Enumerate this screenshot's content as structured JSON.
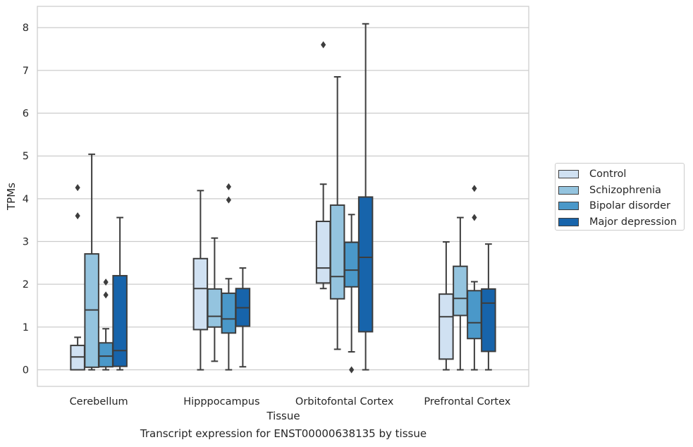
{
  "chart_data": {
    "type": "boxplot",
    "xlabel": "Tissue",
    "ylabel": "TPMs",
    "ylim": [
      -0.4,
      8.5
    ],
    "yticks": [
      0,
      1,
      2,
      3,
      4,
      5,
      6,
      7,
      8
    ],
    "grid": "horizontal",
    "legend_position": "right",
    "caption": "Transcript expression for ENST00000638135 by tissue",
    "categories": [
      "Cerebellum",
      "Hipppocampus",
      "Orbitofontal Cortex",
      "Prefrontal Cortex"
    ],
    "series": [
      {
        "name": "Control",
        "color": "#d0e1f2",
        "boxes": [
          {
            "whisker_low": 0.0,
            "q1": 0.0,
            "median": 0.3,
            "q3": 0.57,
            "whisker_high": 0.76,
            "outliers": [
              3.6,
              4.26
            ]
          },
          {
            "whisker_low": 0.0,
            "q1": 0.94,
            "median": 1.9,
            "q3": 2.6,
            "whisker_high": 4.19,
            "outliers": []
          },
          {
            "whisker_low": 1.9,
            "q1": 2.03,
            "median": 2.38,
            "q3": 3.47,
            "whisker_high": 4.34,
            "outliers": [
              7.6
            ]
          },
          {
            "whisker_low": 0.0,
            "q1": 0.25,
            "median": 1.24,
            "q3": 1.77,
            "whisker_high": 2.99,
            "outliers": []
          }
        ]
      },
      {
        "name": "Schizophrenia",
        "color": "#94c4df",
        "boxes": [
          {
            "whisker_low": 0.0,
            "q1": 0.06,
            "median": 1.4,
            "q3": 2.71,
            "whisker_high": 5.04,
            "outliers": []
          },
          {
            "whisker_low": 0.2,
            "q1": 1.0,
            "median": 1.25,
            "q3": 1.89,
            "whisker_high": 3.08,
            "outliers": []
          },
          {
            "whisker_low": 0.48,
            "q1": 1.66,
            "median": 2.18,
            "q3": 3.85,
            "whisker_high": 6.85,
            "outliers": []
          },
          {
            "whisker_low": 0.0,
            "q1": 1.27,
            "median": 1.67,
            "q3": 2.42,
            "whisker_high": 3.56,
            "outliers": []
          }
        ]
      },
      {
        "name": "Bipolar disorder",
        "color": "#4a98c9",
        "boxes": [
          {
            "whisker_low": 0.0,
            "q1": 0.07,
            "median": 0.32,
            "q3": 0.63,
            "whisker_high": 0.96,
            "outliers": [
              1.75,
              2.05
            ]
          },
          {
            "whisker_low": 0.0,
            "q1": 0.86,
            "median": 1.19,
            "q3": 1.79,
            "whisker_high": 2.13,
            "outliers": [
              3.97,
              4.28
            ]
          },
          {
            "whisker_low": 0.42,
            "q1": 1.94,
            "median": 2.33,
            "q3": 2.98,
            "whisker_high": 3.63,
            "outliers": [
              0.0
            ]
          },
          {
            "whisker_low": 0.0,
            "q1": 0.73,
            "median": 1.1,
            "q3": 1.85,
            "whisker_high": 2.06,
            "outliers": [
              3.56,
              4.24
            ]
          }
        ]
      },
      {
        "name": "Major depression",
        "color": "#1764ab",
        "boxes": [
          {
            "whisker_low": 0.0,
            "q1": 0.08,
            "median": 0.45,
            "q3": 2.2,
            "whisker_high": 3.56,
            "outliers": []
          },
          {
            "whisker_low": 0.07,
            "q1": 1.02,
            "median": 1.45,
            "q3": 1.9,
            "whisker_high": 2.38,
            "outliers": []
          },
          {
            "whisker_low": 0.0,
            "q1": 0.89,
            "median": 2.63,
            "q3": 4.04,
            "whisker_high": 8.09,
            "outliers": []
          },
          {
            "whisker_low": 0.0,
            "q1": 0.43,
            "median": 1.56,
            "q3": 1.89,
            "whisker_high": 2.94,
            "outliers": []
          }
        ]
      }
    ]
  }
}
